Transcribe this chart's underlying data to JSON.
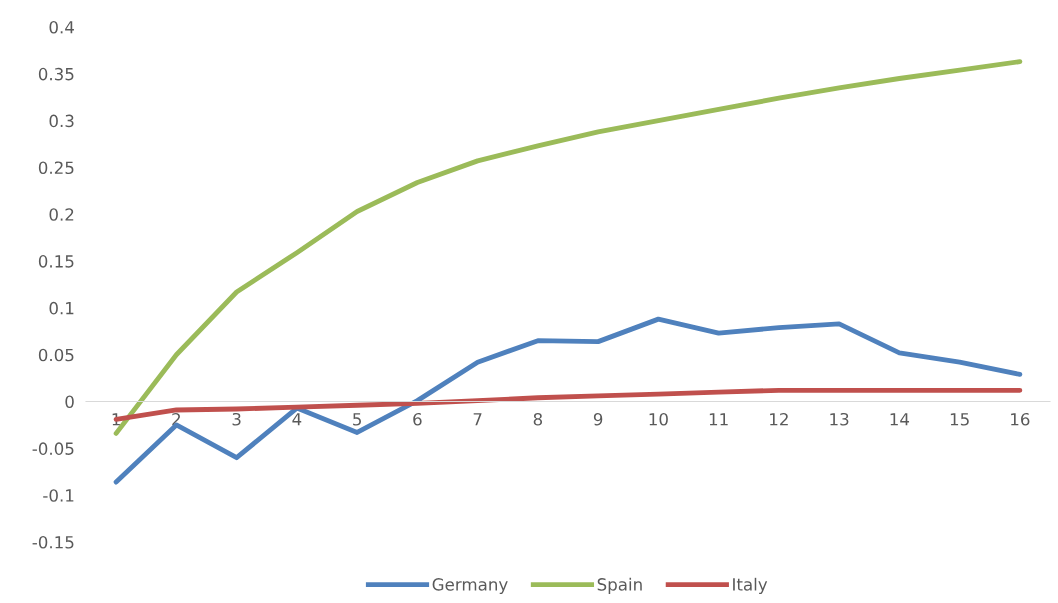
{
  "chart_data": {
    "type": "line",
    "categories": [
      "1",
      "2",
      "3",
      "4",
      "5",
      "6",
      "7",
      "8",
      "9",
      "10",
      "11",
      "12",
      "13",
      "14",
      "15",
      "16"
    ],
    "series": [
      {
        "name": "Germany",
        "color": "#4f81bd",
        "values": [
          -0.086,
          -0.025,
          -0.06,
          -0.007,
          -0.033,
          0.001,
          0.042,
          0.065,
          0.064,
          0.088,
          0.073,
          0.079,
          0.083,
          0.052,
          0.042,
          0.029
        ]
      },
      {
        "name": "Spain",
        "color": "#9bbb59",
        "values": [
          -0.034,
          0.05,
          0.117,
          0.159,
          0.203,
          0.234,
          0.257,
          0.273,
          0.288,
          0.3,
          0.312,
          0.324,
          0.335,
          0.345,
          0.354,
          0.363
        ]
      },
      {
        "name": "Italy",
        "color": "#c0504d",
        "values": [
          -0.019,
          -0.009,
          -0.008,
          -0.006,
          -0.004,
          -0.002,
          0.001,
          0.004,
          0.006,
          0.008,
          0.01,
          0.012,
          0.012,
          0.012,
          0.012,
          0.012
        ]
      }
    ],
    "ylim": [
      -0.15,
      0.4
    ],
    "yticks": [
      -0.15,
      -0.1,
      -0.05,
      0,
      0.05,
      0.1,
      0.15,
      0.2,
      0.25,
      0.3,
      0.35,
      0.4
    ],
    "grid": false,
    "legend": "bottom",
    "marker": "none",
    "line_style": "solid"
  }
}
